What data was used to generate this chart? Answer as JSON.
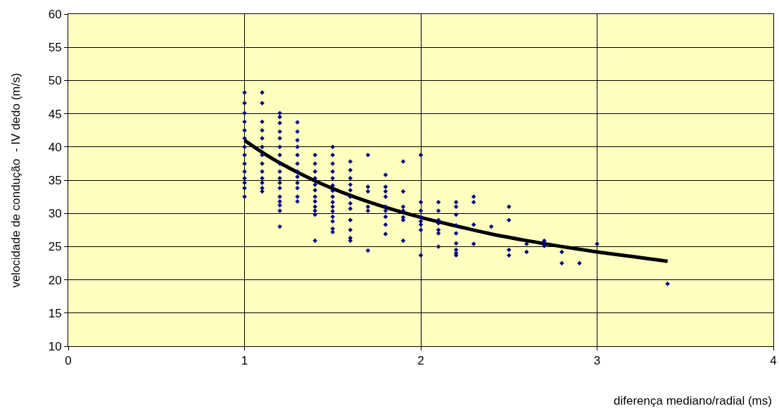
{
  "chart_data": {
    "type": "scatter",
    "xlabel": "diferença mediano/radial (ms)",
    "ylabel": "velocidade de condução  - IV dedo (m/s)",
    "xlim": [
      0,
      4
    ],
    "xticks": [
      0,
      1,
      2,
      3,
      4
    ],
    "ylim": [
      10,
      60
    ],
    "yticks": [
      10,
      15,
      20,
      25,
      30,
      35,
      40,
      45,
      50,
      55,
      60
    ],
    "grid": true,
    "marker": "diamond",
    "series": [
      {
        "color": "#000080",
        "x": [
          1,
          1,
          1,
          1,
          1,
          1,
          1,
          1,
          1,
          1,
          1,
          1,
          1,
          1,
          1.1,
          1.1,
          1.1,
          1.1,
          1.1,
          1.1,
          1.1,
          1.1,
          1.1,
          1.1,
          1.1,
          1.1,
          1.1,
          1.2,
          1.2,
          1.2,
          1.2,
          1.2,
          1.2,
          1.2,
          1.2,
          1.2,
          1.2,
          1.2,
          1.2,
          1.2,
          1.2,
          1.2,
          1.2,
          1.2,
          1.3,
          1.3,
          1.3,
          1.3,
          1.3,
          1.3,
          1.3,
          1.3,
          1.3,
          1.3,
          1.3,
          1.3,
          1.4,
          1.4,
          1.4,
          1.4,
          1.4,
          1.4,
          1.4,
          1.4,
          1.4,
          1.4,
          1.4,
          1.4,
          1.5,
          1.5,
          1.5,
          1.5,
          1.5,
          1.5,
          1.5,
          1.5,
          1.5,
          1.5,
          1.5,
          1.5,
          1.5,
          1.5,
          1.5,
          1.6,
          1.6,
          1.6,
          1.6,
          1.6,
          1.6,
          1.6,
          1.6,
          1.6,
          1.6,
          1.6,
          1.6,
          1.7,
          1.7,
          1.7,
          1.7,
          1.7,
          1.7,
          1.8,
          1.8,
          1.8,
          1.8,
          1.8,
          1.8,
          1.8,
          1.8,
          1.8,
          1.9,
          1.9,
          1.9,
          1.9,
          1.9,
          1.9,
          1.9,
          2,
          2,
          2,
          2,
          2,
          2,
          2,
          2,
          2.1,
          2.1,
          2.1,
          2.1,
          2.1,
          2.1,
          2.1,
          2.2,
          2.2,
          2.2,
          2.2,
          2.2,
          2.2,
          2.2,
          2.2,
          2.2,
          2.3,
          2.3,
          2.3,
          2.3,
          2.4,
          2.5,
          2.5,
          2.5,
          2.5,
          2.6,
          2.6,
          2.7,
          2.7,
          2.7,
          2.8,
          2.8,
          2.9,
          3,
          3.4
        ],
        "values": [
          48.2,
          46.6,
          45.1,
          43.8,
          42.5,
          41.3,
          40,
          38.8,
          37.5,
          36.3,
          35.3,
          34.6,
          33.8,
          32.5,
          48.2,
          46.6,
          43.8,
          42.5,
          41.3,
          40,
          38.8,
          37.5,
          36.3,
          35.3,
          34.6,
          33.8,
          33.3,
          45.1,
          44.5,
          43.6,
          42.3,
          41.3,
          40,
          38.8,
          37.5,
          36.3,
          35.3,
          34.6,
          33.8,
          32.5,
          31.8,
          31.2,
          30.4,
          28,
          43.7,
          42.3,
          41,
          40,
          38.8,
          37.5,
          36.3,
          35.5,
          34.6,
          33.8,
          32.5,
          31.8,
          38.8,
          37.5,
          36.3,
          35.3,
          34.3,
          33.5,
          32.5,
          31.8,
          31,
          30.4,
          29.8,
          25.9,
          40,
          38.8,
          37.5,
          36.3,
          35.3,
          34.2,
          33.4,
          32.5,
          31.7,
          31,
          30.3,
          29.5,
          28.8,
          27.7,
          27.2,
          37.8,
          36.5,
          35.3,
          34.3,
          33.5,
          32.5,
          31.5,
          30.7,
          29,
          27.5,
          26.3,
          25.9,
          38.8,
          34,
          33.3,
          31,
          30.4,
          24.4,
          35.8,
          34,
          33.3,
          32.5,
          31,
          30.4,
          29.5,
          28.3,
          26.9,
          37.8,
          33.3,
          31,
          30.4,
          29.4,
          29,
          25.9,
          38.8,
          31.7,
          30.4,
          29.4,
          28.8,
          28.3,
          27.5,
          23.7,
          31.7,
          30.4,
          29,
          28.5,
          27.5,
          27,
          25,
          31.7,
          31,
          29.8,
          28.2,
          27,
          25.5,
          24.5,
          24,
          23.7,
          32.5,
          31.7,
          28.3,
          25.4,
          28,
          31,
          29,
          24.5,
          23.7,
          25.4,
          24.2,
          25.9,
          25.4,
          25.1,
          24.2,
          22.5,
          22.5,
          25.4,
          19.4
        ]
      },
      {
        "type": "line",
        "color": "#000000",
        "marker": "none",
        "x": [
          1,
          1.1,
          1.2,
          1.4,
          1.6,
          1.8,
          2,
          2.2,
          2.4,
          2.6,
          2.8,
          3,
          3.2,
          3.4
        ],
        "values": [
          41,
          39.2,
          37.6,
          34.9,
          32.7,
          30.9,
          29.4,
          28.1,
          26.9,
          25.9,
          25,
          24.2,
          23.5,
          22.8
        ]
      }
    ]
  }
}
